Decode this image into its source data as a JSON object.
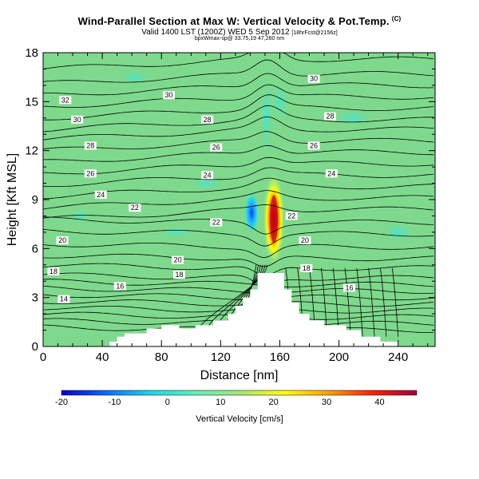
{
  "title": "Wind-Parallel Section at Max W: Vertical Velocity & Pot.Temp.",
  "title_mark": "(C)",
  "subtitle": "Valid 1400 LST (1200Z) WED 5 Sep 2012",
  "subtitle_note": "[18hrFcst@2156z]",
  "subtitle2": "bpxWmax-sp@ 33.75,19 47,260 nm",
  "colors": {
    "plot_bg": "#7ed98c",
    "terrain": "#ffffff",
    "contour": "#000000",
    "colorbar_stops": [
      "#0000c8",
      "#0b6bff",
      "#19d8e6",
      "#60f0b8",
      "#a0e878",
      "#ffff00",
      "#ffa000",
      "#ff2000",
      "#a00040"
    ]
  },
  "chart_data": {
    "type": "heatmap",
    "xlabel": "Distance [nm]",
    "ylabel": "Height [Kft MSL]",
    "xlim": [
      0,
      265
    ],
    "ylim": [
      0,
      18
    ],
    "x_ticks": [
      0,
      40,
      80,
      120,
      160,
      200,
      240
    ],
    "y_ticks": [
      0,
      3,
      6,
      9,
      12,
      15,
      18
    ],
    "colorbar": {
      "label": "Vertical Velocity [cm/s]",
      "range": [
        -20,
        47
      ],
      "ticks": [
        -20,
        -10,
        0,
        10,
        20,
        30,
        40
      ]
    },
    "updraft_core": {
      "x": 156,
      "y": 7.8,
      "max_value": 45
    },
    "downdraft_core": {
      "x": 141,
      "y": 8.2,
      "min_value": -14
    },
    "contour_labels": [
      {
        "text": "32",
        "x": 15,
        "y": 15.1
      },
      {
        "text": "30",
        "x": 23,
        "y": 13.9
      },
      {
        "text": "30",
        "x": 85,
        "y": 15.4
      },
      {
        "text": "30",
        "x": 183,
        "y": 16.4
      },
      {
        "text": "28",
        "x": 32,
        "y": 12.3
      },
      {
        "text": "28",
        "x": 111,
        "y": 13.9
      },
      {
        "text": "28",
        "x": 194,
        "y": 14.1
      },
      {
        "text": "26",
        "x": 32,
        "y": 10.6
      },
      {
        "text": "26",
        "x": 117,
        "y": 12.2
      },
      {
        "text": "26",
        "x": 183,
        "y": 12.3
      },
      {
        "text": "24",
        "x": 39,
        "y": 9.3
      },
      {
        "text": "24",
        "x": 111,
        "y": 10.5
      },
      {
        "text": "24",
        "x": 195,
        "y": 10.6
      },
      {
        "text": "22",
        "x": 62,
        "y": 8.5
      },
      {
        "text": "22",
        "x": 117,
        "y": 7.6
      },
      {
        "text": "22",
        "x": 168,
        "y": 8.0
      },
      {
        "text": "20",
        "x": 13,
        "y": 6.5
      },
      {
        "text": "20",
        "x": 91,
        "y": 5.3
      },
      {
        "text": "20",
        "x": 177,
        "y": 6.5
      },
      {
        "text": "18",
        "x": 7,
        "y": 4.6
      },
      {
        "text": "18",
        "x": 92,
        "y": 4.4
      },
      {
        "text": "18",
        "x": 178,
        "y": 4.8
      },
      {
        "text": "16",
        "x": 52,
        "y": 3.7
      },
      {
        "text": "16",
        "x": 207,
        "y": 3.6
      },
      {
        "text": "14",
        "x": 14,
        "y": 2.9
      }
    ]
  }
}
